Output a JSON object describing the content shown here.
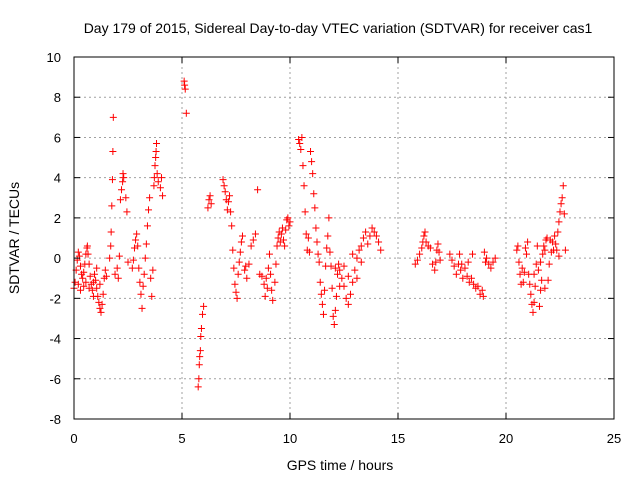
{
  "chart_data": {
    "type": "scatter",
    "title": "Day 179 of 2015, Sidereal Day-to-day VTEC variation (SDTVAR) for receiver cas1",
    "xlabel": "GPS time / hours",
    "ylabel": "SDTVAR / TECUs",
    "xlim": [
      0,
      25
    ],
    "ylim": [
      -8,
      10
    ],
    "xticks": [
      "0",
      "5",
      "10",
      "15",
      "20",
      "25"
    ],
    "yticks": [
      "-8",
      "-6",
      "-4",
      "-2",
      "0",
      "2",
      "4",
      "6",
      "8",
      "10"
    ],
    "grid": true,
    "marker": "plus",
    "series_color": "#ff0000",
    "series": [
      {
        "name": "SDTVAR",
        "points": [
          [
            0.0,
            -1.5
          ],
          [
            0.05,
            -1.2
          ],
          [
            0.1,
            -0.6
          ],
          [
            0.15,
            -0.1
          ],
          [
            0.2,
            0.3
          ],
          [
            0.25,
            0.1
          ],
          [
            0.3,
            -0.4
          ],
          [
            0.35,
            -0.8
          ],
          [
            0.4,
            -1.0
          ],
          [
            0.45,
            -0.7
          ],
          [
            0.5,
            -0.3
          ],
          [
            0.55,
            0.2
          ],
          [
            0.6,
            0.5
          ],
          [
            0.62,
            0.6
          ],
          [
            0.65,
            0.2
          ],
          [
            0.7,
            -0.3
          ],
          [
            0.75,
            -0.9
          ],
          [
            0.8,
            -1.3
          ],
          [
            0.85,
            -1.6
          ],
          [
            0.9,
            -1.2
          ],
          [
            0.95,
            -0.8
          ],
          [
            1.0,
            -1.1
          ],
          [
            1.05,
            -1.5
          ],
          [
            1.1,
            -1.9
          ],
          [
            1.15,
            -2.2
          ],
          [
            1.2,
            -2.5
          ],
          [
            1.25,
            -2.7
          ],
          [
            1.3,
            -2.3
          ],
          [
            1.35,
            -1.8
          ],
          [
            1.4,
            -1.0
          ],
          [
            1.45,
            -0.6
          ],
          [
            1.5,
            -0.9
          ],
          [
            0.2,
            -1.3
          ],
          [
            0.3,
            -1.6
          ],
          [
            0.45,
            -1.4
          ],
          [
            0.55,
            -1.2
          ],
          [
            0.7,
            -1.5
          ],
          [
            0.9,
            -1.9
          ],
          [
            1.05,
            -0.5
          ],
          [
            1.2,
            -1.3
          ],
          [
            1.65,
            0.0
          ],
          [
            1.7,
            0.6
          ],
          [
            1.72,
            1.3
          ],
          [
            1.75,
            2.6
          ],
          [
            1.78,
            3.9
          ],
          [
            1.8,
            5.3
          ],
          [
            1.82,
            7.0
          ],
          [
            1.9,
            -0.8
          ],
          [
            2.0,
            -0.5
          ],
          [
            2.05,
            -1.0
          ],
          [
            2.1,
            0.1
          ],
          [
            2.15,
            2.9
          ],
          [
            2.2,
            3.4
          ],
          [
            2.25,
            3.8
          ],
          [
            2.27,
            4.2
          ],
          [
            2.3,
            4.0
          ],
          [
            2.4,
            3.0
          ],
          [
            2.45,
            2.3
          ],
          [
            2.5,
            -0.2
          ],
          [
            2.7,
            -0.5
          ],
          [
            2.75,
            -0.1
          ],
          [
            2.8,
            0.5
          ],
          [
            2.85,
            0.9
          ],
          [
            2.9,
            1.2
          ],
          [
            2.95,
            0.6
          ],
          [
            3.0,
            -0.5
          ],
          [
            3.05,
            -1.2
          ],
          [
            3.1,
            -1.8
          ],
          [
            3.15,
            -2.5
          ],
          [
            3.2,
            -1.4
          ],
          [
            3.25,
            -0.8
          ],
          [
            3.3,
            0.0
          ],
          [
            3.35,
            0.7
          ],
          [
            3.4,
            1.6
          ],
          [
            3.45,
            2.4
          ],
          [
            3.5,
            3.0
          ],
          [
            3.55,
            -1.0
          ],
          [
            3.6,
            -1.9
          ],
          [
            3.65,
            -0.6
          ],
          [
            3.7,
            3.6
          ],
          [
            3.72,
            4.0
          ],
          [
            3.75,
            4.6
          ],
          [
            3.78,
            5.0
          ],
          [
            3.8,
            5.3
          ],
          [
            3.82,
            5.7
          ],
          [
            3.85,
            4.2
          ],
          [
            3.9,
            3.8
          ],
          [
            4.0,
            3.5
          ],
          [
            4.05,
            4.0
          ],
          [
            4.1,
            3.1
          ],
          [
            5.1,
            8.8
          ],
          [
            5.12,
            8.6
          ],
          [
            5.15,
            8.4
          ],
          [
            5.2,
            7.2
          ],
          [
            5.75,
            -6.4
          ],
          [
            5.78,
            -6.0
          ],
          [
            5.8,
            -5.3
          ],
          [
            5.82,
            -4.9
          ],
          [
            5.85,
            -4.6
          ],
          [
            5.87,
            -3.9
          ],
          [
            5.9,
            -3.5
          ],
          [
            5.95,
            -2.8
          ],
          [
            6.0,
            -2.4
          ],
          [
            6.2,
            2.5
          ],
          [
            6.25,
            2.9
          ],
          [
            6.3,
            3.1
          ],
          [
            6.35,
            2.7
          ],
          [
            6.9,
            3.9
          ],
          [
            6.95,
            3.6
          ],
          [
            7.0,
            3.3
          ],
          [
            7.05,
            2.9
          ],
          [
            7.1,
            2.4
          ],
          [
            7.15,
            2.8
          ],
          [
            7.2,
            3.1
          ],
          [
            7.25,
            2.3
          ],
          [
            7.3,
            1.6
          ],
          [
            7.35,
            0.4
          ],
          [
            7.4,
            -0.5
          ],
          [
            7.45,
            -1.3
          ],
          [
            7.5,
            -1.7
          ],
          [
            7.55,
            -2.0
          ],
          [
            7.6,
            -0.8
          ],
          [
            7.65,
            -0.2
          ],
          [
            7.7,
            0.3
          ],
          [
            7.75,
            0.8
          ],
          [
            7.8,
            1.1
          ],
          [
            7.9,
            -0.6
          ],
          [
            7.95,
            -0.4
          ],
          [
            8.0,
            -1.0
          ],
          [
            8.1,
            -0.3
          ],
          [
            8.2,
            0.6
          ],
          [
            8.3,
            0.9
          ],
          [
            8.4,
            1.2
          ],
          [
            8.5,
            3.4
          ],
          [
            8.6,
            -0.8
          ],
          [
            8.7,
            -0.9
          ],
          [
            8.8,
            -1.3
          ],
          [
            8.85,
            -1.9
          ],
          [
            8.9,
            -1.0
          ],
          [
            8.95,
            -1.5
          ],
          [
            9.0,
            -0.5
          ],
          [
            9.05,
            0.2
          ],
          [
            9.1,
            -0.8
          ],
          [
            9.15,
            -1.6
          ],
          [
            9.2,
            -2.1
          ],
          [
            9.3,
            -1.2
          ],
          [
            9.35,
            -0.3
          ],
          [
            9.4,
            0.6
          ],
          [
            9.45,
            1.0
          ],
          [
            9.5,
            1.3
          ],
          [
            9.55,
            0.8
          ],
          [
            9.6,
            1.2
          ],
          [
            9.65,
            1.5
          ],
          [
            9.7,
            0.9
          ],
          [
            9.75,
            0.6
          ],
          [
            9.8,
            1.4
          ],
          [
            9.85,
            1.9
          ],
          [
            9.9,
            2.0
          ],
          [
            9.95,
            1.6
          ],
          [
            10.0,
            1.8
          ],
          [
            10.4,
            5.9
          ],
          [
            10.45,
            5.7
          ],
          [
            10.5,
            5.4
          ],
          [
            10.55,
            6.0
          ],
          [
            10.6,
            4.6
          ],
          [
            10.65,
            3.6
          ],
          [
            10.7,
            2.3
          ],
          [
            10.75,
            1.2
          ],
          [
            10.8,
            0.4
          ],
          [
            10.85,
            1.0
          ],
          [
            10.9,
            0.3
          ],
          [
            10.95,
            5.3
          ],
          [
            11.0,
            4.8
          ],
          [
            11.05,
            4.2
          ],
          [
            11.1,
            3.2
          ],
          [
            11.15,
            2.5
          ],
          [
            11.2,
            1.5
          ],
          [
            11.25,
            0.8
          ],
          [
            11.3,
            0.2
          ],
          [
            11.35,
            -0.2
          ],
          [
            11.4,
            -1.2
          ],
          [
            11.45,
            -1.8
          ],
          [
            11.5,
            -2.3
          ],
          [
            11.55,
            -2.8
          ],
          [
            11.6,
            -1.6
          ],
          [
            11.65,
            -0.4
          ],
          [
            11.7,
            0.5
          ],
          [
            11.75,
            1.1
          ],
          [
            11.8,
            2.0
          ],
          [
            11.85,
            0.3
          ],
          [
            11.9,
            -0.4
          ],
          [
            11.95,
            -1.5
          ],
          [
            12.0,
            -2.9
          ],
          [
            12.05,
            -3.3
          ],
          [
            12.1,
            -2.6
          ],
          [
            12.15,
            -1.9
          ],
          [
            12.2,
            -0.8
          ],
          [
            12.25,
            -0.3
          ],
          [
            12.3,
            -0.6
          ],
          [
            12.4,
            -1.0
          ],
          [
            12.5,
            -1.4
          ],
          [
            12.6,
            -2.0
          ],
          [
            12.7,
            -2.3
          ],
          [
            12.8,
            -1.8
          ],
          [
            12.9,
            -1.2
          ],
          [
            13.0,
            -0.6
          ],
          [
            13.1,
            0.0
          ],
          [
            13.2,
            0.4
          ],
          [
            13.3,
            0.6
          ],
          [
            13.4,
            1.0
          ],
          [
            13.5,
            1.3
          ],
          [
            13.6,
            0.7
          ],
          [
            13.7,
            1.1
          ],
          [
            13.8,
            1.5
          ],
          [
            13.9,
            1.3
          ],
          [
            14.0,
            1.1
          ],
          [
            14.1,
            0.8
          ],
          [
            14.2,
            0.4
          ],
          [
            12.1,
            -0.5
          ],
          [
            12.3,
            -1.4
          ],
          [
            12.5,
            -0.4
          ],
          [
            12.7,
            -0.9
          ],
          [
            12.9,
            0.2
          ],
          [
            13.1,
            -1.0
          ],
          [
            13.3,
            -0.2
          ],
          [
            15.8,
            -0.3
          ],
          [
            15.9,
            -0.1
          ],
          [
            16.0,
            0.2
          ],
          [
            16.1,
            0.5
          ],
          [
            16.15,
            0.8
          ],
          [
            16.2,
            1.1
          ],
          [
            16.25,
            1.3
          ],
          [
            16.3,
            0.8
          ],
          [
            16.4,
            0.6
          ],
          [
            16.5,
            0.5
          ],
          [
            16.6,
            -0.3
          ],
          [
            16.7,
            -0.6
          ],
          [
            16.75,
            -0.2
          ],
          [
            16.8,
            0.4
          ],
          [
            16.85,
            0.7
          ],
          [
            16.9,
            0.3
          ],
          [
            16.95,
            -0.1
          ],
          [
            17.4,
            0.2
          ],
          [
            17.5,
            -0.1
          ],
          [
            17.6,
            -0.4
          ],
          [
            17.7,
            -0.8
          ],
          [
            17.8,
            -0.3
          ],
          [
            17.85,
            0.2
          ],
          [
            17.9,
            -0.6
          ],
          [
            18.0,
            -1.0
          ],
          [
            18.1,
            -0.5
          ],
          [
            18.2,
            -0.9
          ],
          [
            18.3,
            -1.2
          ],
          [
            18.4,
            -1.0
          ],
          [
            18.5,
            -1.3
          ],
          [
            18.6,
            -1.5
          ],
          [
            18.7,
            -1.4
          ],
          [
            18.8,
            -1.8
          ],
          [
            18.9,
            -1.6
          ],
          [
            18.95,
            -1.9
          ],
          [
            19.0,
            0.3
          ],
          [
            19.05,
            -0.2
          ],
          [
            19.1,
            0.0
          ],
          [
            19.2,
            -0.3
          ],
          [
            19.3,
            -0.5
          ],
          [
            19.4,
            -0.2
          ],
          [
            19.5,
            0.0
          ],
          [
            17.95,
            -0.3
          ],
          [
            18.25,
            -0.2
          ],
          [
            18.45,
            0.2
          ],
          [
            20.5,
            0.4
          ],
          [
            20.55,
            0.6
          ],
          [
            20.6,
            -0.2
          ],
          [
            20.65,
            -0.8
          ],
          [
            20.7,
            -1.3
          ],
          [
            20.75,
            -0.5
          ],
          [
            20.8,
            -1.2
          ],
          [
            20.85,
            -0.7
          ],
          [
            20.9,
            0.5
          ],
          [
            20.95,
            0.2
          ],
          [
            21.0,
            0.8
          ],
          [
            21.05,
            -0.8
          ],
          [
            21.1,
            -1.3
          ],
          [
            21.15,
            -1.8
          ],
          [
            21.2,
            -2.3
          ],
          [
            21.25,
            -2.7
          ],
          [
            21.3,
            -2.2
          ],
          [
            21.35,
            -1.4
          ],
          [
            21.4,
            -0.3
          ],
          [
            21.45,
            0.6
          ],
          [
            21.5,
            -0.6
          ],
          [
            21.55,
            -2.4
          ],
          [
            21.6,
            -1.6
          ],
          [
            21.65,
            -1.1
          ],
          [
            21.7,
            0.2
          ],
          [
            21.75,
            0.6
          ],
          [
            21.8,
            0.4
          ],
          [
            21.85,
            0.9
          ],
          [
            21.9,
            1.0
          ],
          [
            21.95,
            -1.1
          ],
          [
            22.0,
            -0.3
          ],
          [
            22.1,
            0.3
          ],
          [
            22.15,
            0.8
          ],
          [
            22.2,
            0.4
          ],
          [
            22.25,
            1.1
          ],
          [
            22.3,
            0.7
          ],
          [
            22.35,
            0.4
          ],
          [
            22.4,
            1.3
          ],
          [
            22.45,
            1.8
          ],
          [
            22.5,
            2.3
          ],
          [
            22.55,
            2.7
          ],
          [
            22.6,
            3.0
          ],
          [
            22.65,
            3.6
          ],
          [
            22.7,
            2.2
          ],
          [
            22.75,
            0.4
          ],
          [
            21.3,
            -0.8
          ],
          [
            21.6,
            -0.2
          ],
          [
            21.8,
            -1.5
          ],
          [
            22.05,
            0.9
          ],
          [
            22.45,
            0.1
          ]
        ]
      }
    ]
  }
}
